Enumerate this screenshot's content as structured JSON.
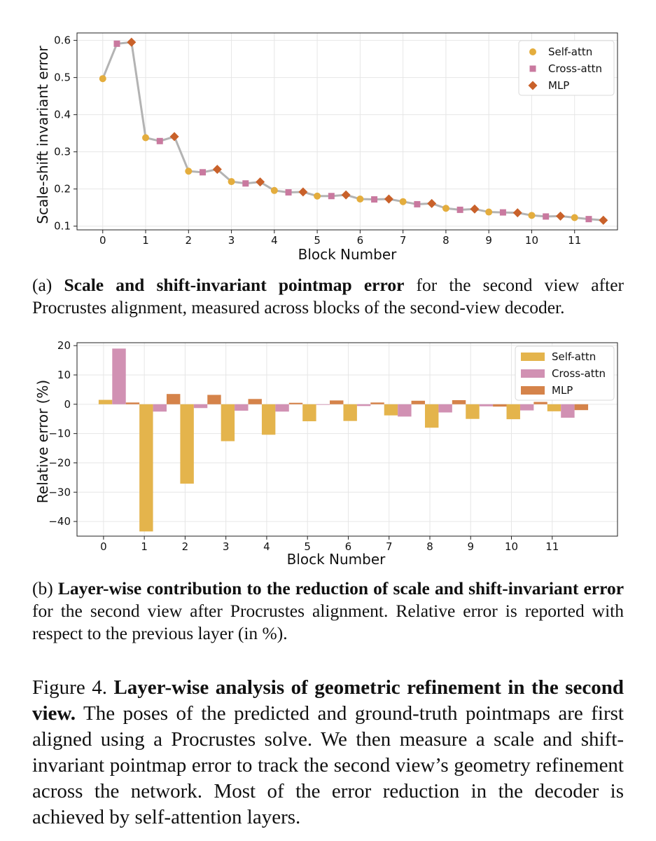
{
  "chart_data": [
    {
      "type": "line",
      "xlabel": "Block Number",
      "ylabel": "Scale-shift invariant error",
      "ylim": [
        0.1,
        0.6
      ],
      "xticks": [
        "0",
        "1",
        "2",
        "3",
        "4",
        "5",
        "6",
        "7",
        "8",
        "9",
        "10",
        "11"
      ],
      "yticks": [
        "0.1",
        "0.2",
        "0.3",
        "0.4",
        "0.5",
        "0.6"
      ],
      "grid": true,
      "legend_position": "top-right",
      "legend": [
        "Self-attn",
        "Cross-attn",
        "MLP"
      ],
      "colors": {
        "line": "#b3b3b3",
        "Self-attn": "#e4ad3d",
        "Cross-attn": "#c9799f",
        "MLP": "#c9612a"
      },
      "x": [
        0,
        0.33,
        0.67,
        1,
        1.33,
        1.67,
        2,
        2.33,
        2.67,
        3,
        3.33,
        3.67,
        4,
        4.33,
        4.67,
        5,
        5.33,
        5.67,
        6,
        6.33,
        6.67,
        7,
        7.33,
        7.67,
        8,
        8.33,
        8.67,
        9,
        9.33,
        9.67,
        10,
        10.33,
        10.67,
        11,
        11.33,
        11.67
      ],
      "y": [
        0.497,
        0.591,
        0.595,
        0.338,
        0.329,
        0.341,
        0.248,
        0.245,
        0.253,
        0.22,
        0.215,
        0.219,
        0.196,
        0.191,
        0.192,
        0.181,
        0.181,
        0.184,
        0.173,
        0.172,
        0.173,
        0.166,
        0.159,
        0.161,
        0.148,
        0.144,
        0.146,
        0.138,
        0.137,
        0.136,
        0.129,
        0.126,
        0.127,
        0.123,
        0.119,
        0.116
      ],
      "marker_type": [
        "Self-attn",
        "Cross-attn",
        "MLP",
        "Self-attn",
        "Cross-attn",
        "MLP",
        "Self-attn",
        "Cross-attn",
        "MLP",
        "Self-attn",
        "Cross-attn",
        "MLP",
        "Self-attn",
        "Cross-attn",
        "MLP",
        "Self-attn",
        "Cross-attn",
        "MLP",
        "Self-attn",
        "Cross-attn",
        "MLP",
        "Self-attn",
        "Cross-attn",
        "MLP",
        "Self-attn",
        "Cross-attn",
        "MLP",
        "Self-attn",
        "Cross-attn",
        "MLP",
        "Self-attn",
        "Cross-attn",
        "MLP",
        "Self-attn",
        "Cross-attn",
        "MLP"
      ]
    },
    {
      "type": "bar",
      "xlabel": "Block Number",
      "ylabel": "Relative error (%)",
      "ylim": [
        -45,
        21
      ],
      "categories": [
        "0",
        "1",
        "2",
        "3",
        "4",
        "5",
        "6",
        "7",
        "8",
        "9",
        "10",
        "11"
      ],
      "yticks": [
        "20",
        "10",
        "0",
        "−10",
        "−20",
        "−30",
        "−40"
      ],
      "grid": true,
      "legend_position": "top-right",
      "colors": {
        "Self-attn": "#e4b44c",
        "Cross-attn": "#d191b3",
        "MLP": "#d5834a"
      },
      "series": [
        {
          "name": "Self-attn",
          "values": [
            1.5,
            -43.4,
            -27.1,
            -12.6,
            -10.4,
            -5.8,
            -5.7,
            -3.8,
            -8.0,
            -5.0,
            -5.1,
            -2.4
          ]
        },
        {
          "name": "Cross-attn",
          "values": [
            19.0,
            -2.5,
            -1.3,
            -2.2,
            -2.5,
            -0.2,
            -0.6,
            -4.2,
            -2.8,
            -0.7,
            -2.1,
            -4.6
          ]
        },
        {
          "name": "MLP",
          "values": [
            0.6,
            3.5,
            3.2,
            1.8,
            0.5,
            1.3,
            0.6,
            1.2,
            1.4,
            -0.8,
            0.8,
            -2.0
          ]
        }
      ]
    }
  ],
  "captions": {
    "a_label": "(a) ",
    "a_bold": "Scale and shift-invariant pointmap error",
    "a_rest": " for the second view after Procrustes alignment, measured across blocks of the second-view decoder.",
    "b_label": "(b) ",
    "b_bold": "Layer-wise contribution to the reduction of scale and shift-invariant error",
    "b_rest": " for the second view after Procrustes alignment. Relative error is reported with respect to the previous layer (in %).",
    "fig_label": "Figure 4.  ",
    "fig_bold": "Layer-wise analysis of geometric refinement in the second view.",
    "fig_rest": "  The poses of the predicted and ground-truth pointmaps are first aligned using a Procrustes solve. We then measure a scale and shift-invariant pointmap error to track the second view’s geometry refinement across the network. Most of the error reduction in the decoder is achieved by self-attention layers."
  }
}
